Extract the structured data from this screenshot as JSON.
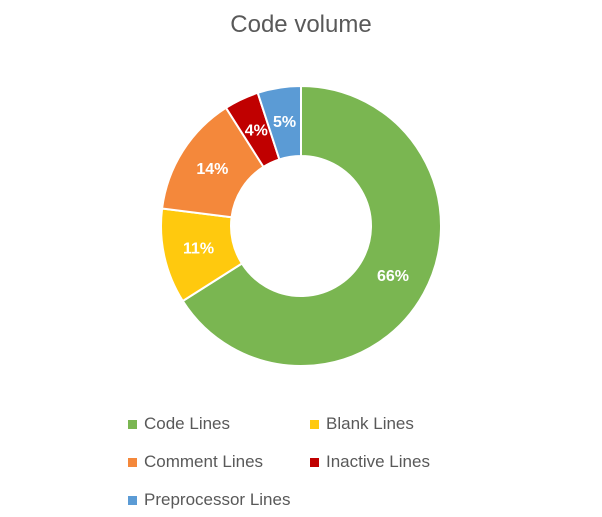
{
  "chart_data": {
    "type": "pie",
    "title": "Code volume",
    "slices": [
      {
        "label": "Code Lines",
        "value": 66,
        "display": "66%",
        "color": "#7ab651"
      },
      {
        "label": "Blank Lines",
        "value": 11,
        "display": "11%",
        "color": "#ffc90e"
      },
      {
        "label": "Comment Lines",
        "value": 14,
        "display": "14%",
        "color": "#f4883b"
      },
      {
        "label": "Inactive Lines",
        "value": 4,
        "display": "4%",
        "color": "#c00000"
      },
      {
        "label": "Preprocessor Lines",
        "value": 5,
        "display": "5%",
        "color": "#5b9bd5"
      }
    ],
    "donut": true,
    "legend_position": "bottom"
  }
}
